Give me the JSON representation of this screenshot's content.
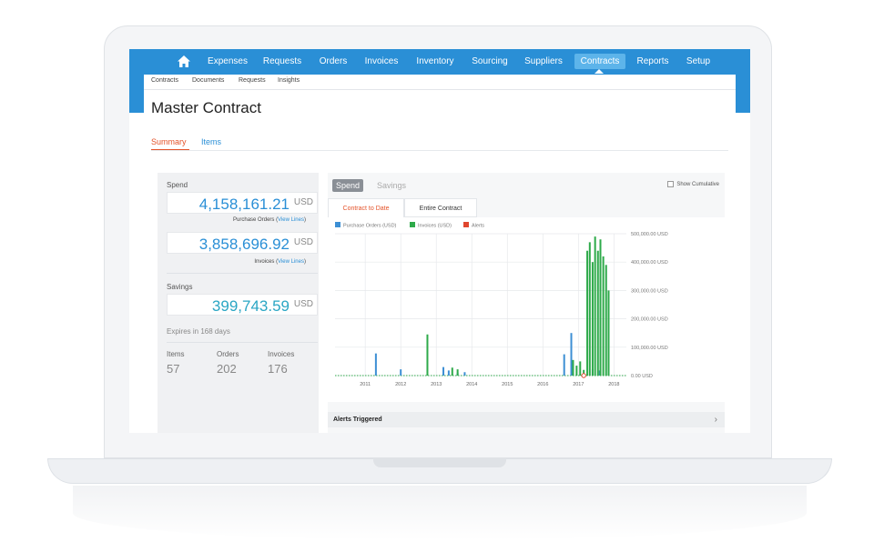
{
  "nav": {
    "items": [
      "Expenses",
      "Requests",
      "Orders",
      "Invoices",
      "Inventory",
      "Sourcing",
      "Suppliers",
      "Contracts",
      "Reports",
      "Setup"
    ],
    "active": "Contracts",
    "home_icon": "home-icon"
  },
  "subnav": [
    "Contracts",
    "Documents",
    "Requests",
    "Insights"
  ],
  "page": {
    "title": "Master Contract",
    "tabs": {
      "summary": "Summary",
      "items": "Items"
    }
  },
  "summary": {
    "spend_label": "Spend",
    "spend_value": "4,158,161.21",
    "currency": "USD",
    "po_label": "Purchase Orders (",
    "po_link": "View Lines",
    "po_close": ")",
    "invoice_value": "3,858,696.92",
    "inv_label": "Invoices (",
    "inv_link": "View Lines",
    "inv_close": ")",
    "savings_label": "Savings",
    "savings_value": "399,743.59",
    "expires": "Expires in 168 days",
    "stats": [
      {
        "label": "Items",
        "value": "57"
      },
      {
        "label": "Orders",
        "value": "202"
      },
      {
        "label": "Invoices",
        "value": "176"
      }
    ]
  },
  "chart_panel": {
    "toggle_spend": "Spend",
    "toggle_savings": "Savings",
    "show_cumulative": "Show Cumulative",
    "tab_active": "Contract to Date",
    "tab_other": "Entire Contract",
    "alerts_triggered": "Alerts Triggered",
    "chevron_icon": "chevron-right-icon"
  },
  "colors": {
    "brand_blue": "#2a8fd6",
    "accent_orange": "#e4532a",
    "po_blue": "#3d8fd4",
    "invoice_green": "#2eaa4a",
    "alert_red": "#e0462e"
  },
  "chart_data": {
    "type": "bar",
    "legend": [
      "Purchase Orders (USD)",
      "Invoices (USD)",
      "Alerts"
    ],
    "legend_position": "top-left",
    "x_ticks": [
      "2011",
      "2012",
      "2013",
      "2014",
      "2015",
      "2016",
      "2017",
      "2018"
    ],
    "y_ticks": [
      "0.00 USD",
      "100,000.00 USD",
      "200,000.00 USD",
      "300,000.00 USD",
      "400,000.00 USD",
      "500,000.00 USD"
    ],
    "ylim": [
      0,
      500000
    ],
    "grid": true,
    "series": [
      {
        "name": "Purchase Orders (USD)",
        "points": [
          {
            "x": 2011.3,
            "y": 78000
          },
          {
            "x": 2012.0,
            "y": 22000
          },
          {
            "x": 2013.2,
            "y": 30000
          },
          {
            "x": 2013.35,
            "y": 18000
          },
          {
            "x": 2013.6,
            "y": 10000
          },
          {
            "x": 2013.8,
            "y": 12000
          },
          {
            "x": 2016.6,
            "y": 75000
          },
          {
            "x": 2016.8,
            "y": 150000
          },
          {
            "x": 2017.4,
            "y": 22000
          },
          {
            "x": 2017.6,
            "y": 18000
          }
        ]
      },
      {
        "name": "Invoices (USD)",
        "points": [
          {
            "x": 2012.75,
            "y": 145000
          },
          {
            "x": 2013.45,
            "y": 28000
          },
          {
            "x": 2013.6,
            "y": 22000
          },
          {
            "x": 2016.85,
            "y": 55000
          },
          {
            "x": 2016.95,
            "y": 35000
          },
          {
            "x": 2017.05,
            "y": 50000
          },
          {
            "x": 2017.15,
            "y": 20000
          },
          {
            "x": 2017.25,
            "y": 440000
          },
          {
            "x": 2017.32,
            "y": 470000
          },
          {
            "x": 2017.4,
            "y": 400000
          },
          {
            "x": 2017.47,
            "y": 490000
          },
          {
            "x": 2017.55,
            "y": 440000
          },
          {
            "x": 2017.62,
            "y": 480000
          },
          {
            "x": 2017.7,
            "y": 420000
          },
          {
            "x": 2017.78,
            "y": 390000
          },
          {
            "x": 2017.85,
            "y": 300000
          }
        ]
      },
      {
        "name": "Alerts",
        "points": [
          {
            "x": 2017.15,
            "y": 0
          }
        ]
      }
    ]
  }
}
